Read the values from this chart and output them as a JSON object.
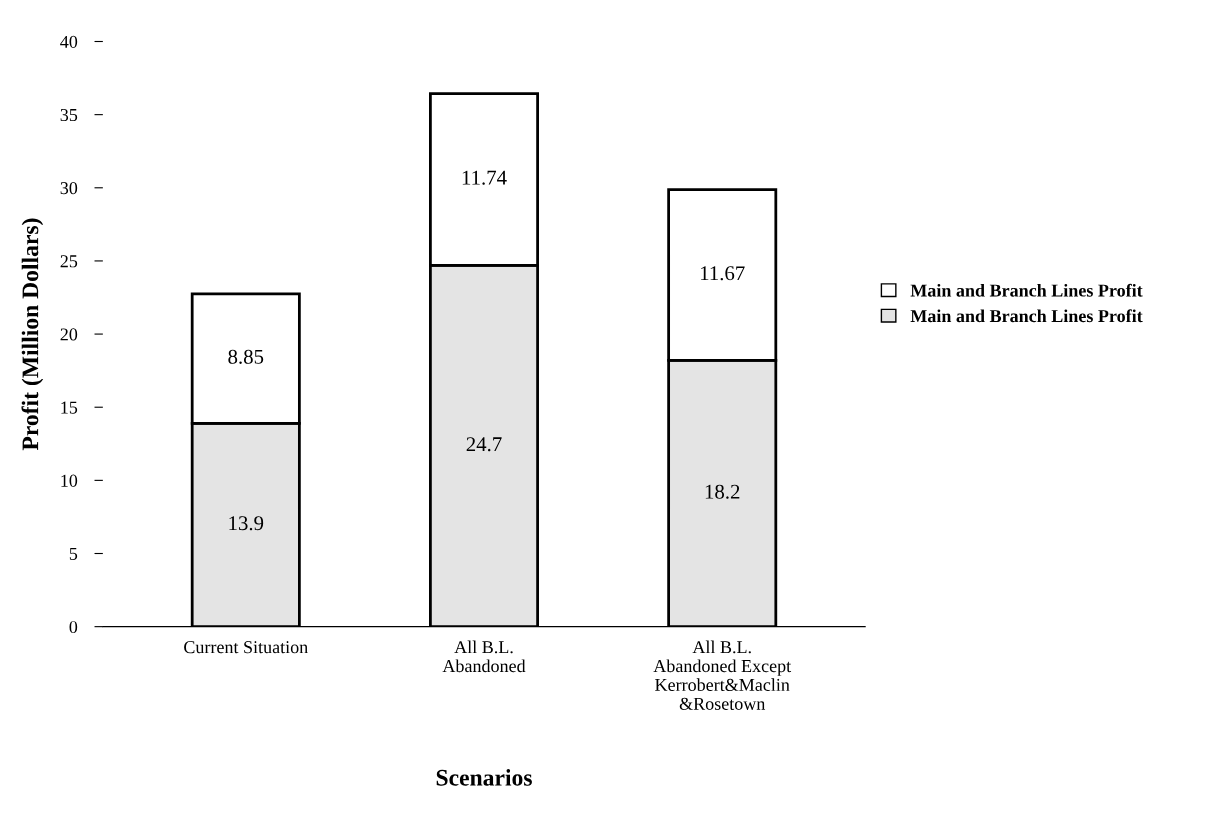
{
  "chart_data": {
    "type": "bar",
    "stacked": true,
    "xlabel": "Scenarios",
    "ylabel": "Profit (Million Dollars)",
    "categories": [
      "Current Situation",
      "All B.L.\nAbandoned",
      "All B.L.\nAbandoned Except\nKerrobert&Maclin\n&Rosetown"
    ],
    "series": [
      {
        "name": "Main and Branch Lines Profit",
        "color": "#e4e4e4",
        "values": [
          13.9,
          24.7,
          18.2
        ]
      },
      {
        "name": "Main and Branch Lines Profit",
        "color": "#ffffff",
        "values": [
          8.85,
          11.74,
          11.67
        ]
      }
    ],
    "data_labels": true,
    "ylim": [
      0,
      40
    ],
    "yticks": [
      0,
      5,
      10,
      15,
      20,
      25,
      30,
      35,
      40
    ],
    "grid": false,
    "legend": "right"
  }
}
